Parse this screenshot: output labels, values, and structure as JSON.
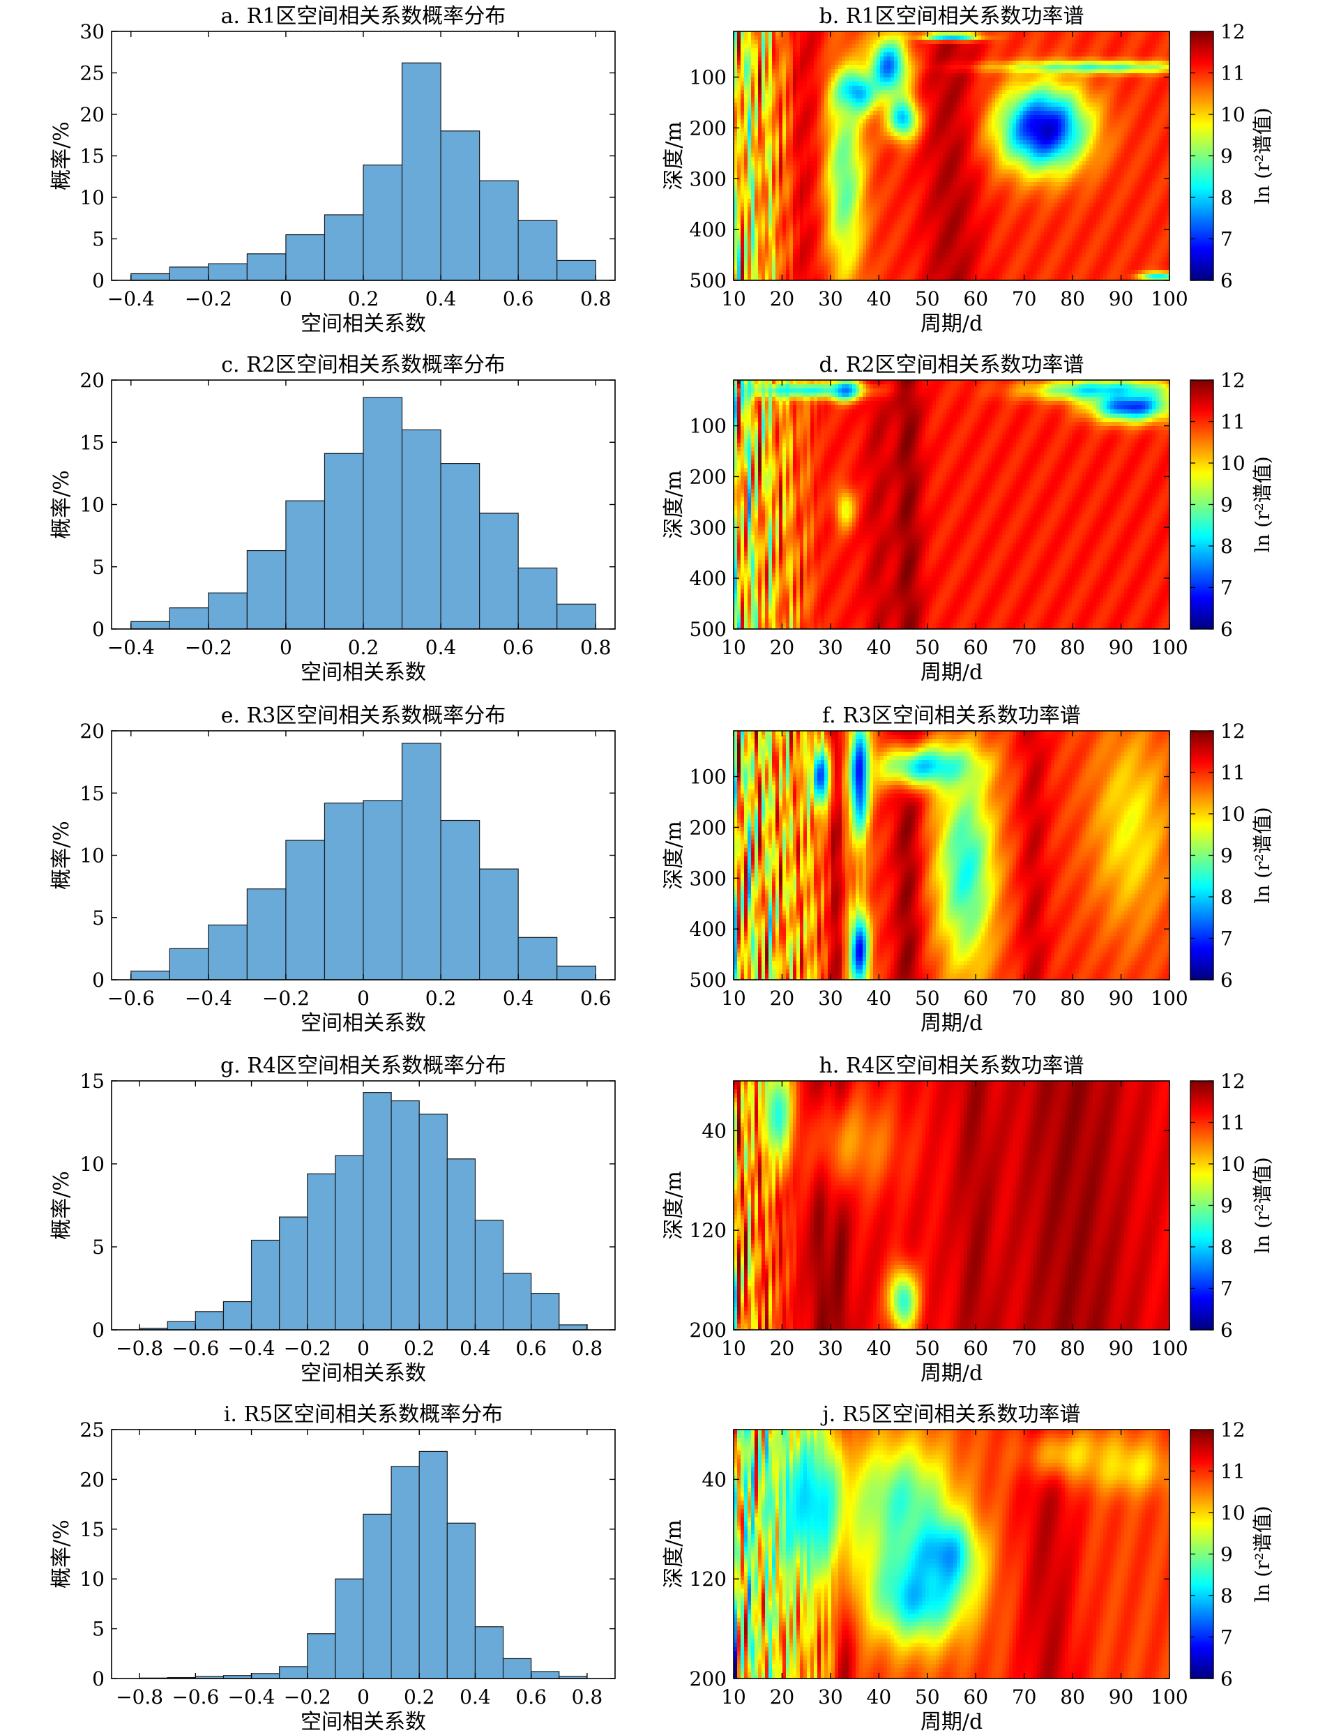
{
  "axis_labels": {
    "hist_x": "空间相关系数",
    "hist_y": "概率/%",
    "spec_x": "周期/d",
    "spec_y": "深度/m",
    "colorbar": "ln (r²谱值)"
  },
  "colors": {
    "bar_fill": "#6aaad9",
    "bar_stroke": "#1a1a1a",
    "colormap": [
      "#00007f",
      "#0000ff",
      "#007fff",
      "#00ffff",
      "#7fff7f",
      "#ffff00",
      "#ff7f00",
      "#ff0000",
      "#7f0000"
    ]
  },
  "chart_data": [
    {
      "id": "a",
      "type": "bar",
      "title": "a. R1区空间相关系数概率分布",
      "xlabel": "空间相关系数",
      "ylabel": "概率/%",
      "xlim": [
        -0.45,
        0.85
      ],
      "ylim": [
        0,
        30
      ],
      "bin_width": 0.1,
      "xticks": [
        "-0.4",
        "-0.2",
        "0",
        "0.2",
        "0.4",
        "0.6",
        "0.8"
      ],
      "yticks": [
        "0",
        "5",
        "10",
        "15",
        "20",
        "25",
        "30"
      ],
      "bin_start": [
        -0.4,
        -0.3,
        -0.2,
        -0.1,
        0.0,
        0.1,
        0.2,
        0.3,
        0.4,
        0.5,
        0.6,
        0.7
      ],
      "values": [
        0.8,
        1.6,
        2.0,
        3.2,
        5.5,
        7.9,
        13.9,
        26.2,
        18.0,
        12.0,
        7.2,
        2.4
      ]
    },
    {
      "id": "b",
      "type": "heatmap",
      "title": "b. R1区空间相关系数功率谱",
      "xlabel": "周期/d",
      "ylabel": "深度/m",
      "xlim": [
        10,
        100
      ],
      "ylim": [
        500,
        10
      ],
      "clim": [
        6,
        12
      ],
      "xticks": [
        "10",
        "20",
        "30",
        "40",
        "50",
        "60",
        "70",
        "80",
        "90",
        "100"
      ],
      "yticks": [
        "100",
        "200",
        "300",
        "400",
        "500"
      ],
      "colorbar_ticks": [
        "6",
        "7",
        "8",
        "9",
        "10",
        "11",
        "12"
      ],
      "features": {
        "base": 11.0,
        "left_stripes": 0.6,
        "stripe_end": 28,
        "stripe_start_value": 8.2,
        "blobs": [
          [
            74,
            200,
            9,
            80,
            6.4
          ],
          [
            85,
            80,
            20,
            12,
            8.6
          ],
          [
            35,
            130,
            4,
            40,
            7.0
          ],
          [
            42,
            80,
            4,
            60,
            7.4
          ],
          [
            45,
            180,
            3,
            40,
            7.8
          ],
          [
            55,
            20,
            6,
            8,
            7.5
          ],
          [
            98,
            490,
            4,
            10,
            8.0
          ],
          [
            33,
            300,
            4,
            200,
            8.8
          ]
        ],
        "ridges": [
          [
            25,
            4,
            11.5
          ],
          [
            55,
            6,
            11.8
          ]
        ]
      }
    },
    {
      "id": "c",
      "type": "bar",
      "title": "c. R2区空间相关系数概率分布",
      "xlabel": "空间相关系数",
      "ylabel": "概率/%",
      "xlim": [
        -0.45,
        0.85
      ],
      "ylim": [
        0,
        20
      ],
      "bin_width": 0.1,
      "xticks": [
        "-0.4",
        "-0.2",
        "0",
        "0.2",
        "0.4",
        "0.6",
        "0.8"
      ],
      "yticks": [
        "0",
        "5",
        "10",
        "15",
        "20"
      ],
      "bin_start": [
        -0.4,
        -0.3,
        -0.2,
        -0.1,
        0.0,
        0.1,
        0.2,
        0.3,
        0.4,
        0.5,
        0.6,
        0.7
      ],
      "values": [
        0.6,
        1.7,
        2.9,
        6.3,
        10.3,
        14.1,
        18.6,
        16.0,
        13.3,
        9.3,
        4.9,
        2.0
      ]
    },
    {
      "id": "d",
      "type": "heatmap",
      "title": "d. R2区空间相关系数功率谱",
      "xlabel": "周期/d",
      "ylabel": "深度/m",
      "xlim": [
        10,
        100
      ],
      "ylim": [
        500,
        10
      ],
      "clim": [
        6,
        12
      ],
      "xticks": [
        "10",
        "20",
        "30",
        "40",
        "50",
        "60",
        "70",
        "80",
        "90",
        "100"
      ],
      "yticks": [
        "100",
        "200",
        "300",
        "400",
        "500"
      ],
      "colorbar_ticks": [
        "6",
        "7",
        "8",
        "9",
        "10",
        "11",
        "12"
      ],
      "features": {
        "base": 11.1,
        "left_stripes": 0.7,
        "stripe_end": 29,
        "stripe_start_value": 8.0,
        "blobs": [
          [
            92,
            60,
            8,
            30,
            6.8
          ],
          [
            86,
            30,
            14,
            20,
            8.0
          ],
          [
            24,
            30,
            12,
            15,
            8.3
          ],
          [
            33,
            30,
            3,
            20,
            7.5
          ],
          [
            33,
            260,
            2,
            40,
            9.6
          ]
        ],
        "ridges": [
          [
            46,
            3,
            12.0
          ],
          [
            40,
            3,
            11.6
          ]
        ]
      }
    },
    {
      "id": "e",
      "type": "bar",
      "title": "e. R3区空间相关系数概率分布",
      "xlabel": "空间相关系数",
      "ylabel": "概率/%",
      "xlim": [
        -0.65,
        0.65
      ],
      "ylim": [
        0,
        20
      ],
      "bin_width": 0.1,
      "xticks": [
        "-0.6",
        "-0.4",
        "-0.2",
        "0",
        "0.2",
        "0.4",
        "0.6"
      ],
      "yticks": [
        "0",
        "5",
        "10",
        "15",
        "20"
      ],
      "bin_start": [
        -0.6,
        -0.5,
        -0.4,
        -0.3,
        -0.2,
        -0.1,
        0.0,
        0.1,
        0.2,
        0.3,
        0.4,
        0.5
      ],
      "values": [
        0.7,
        2.5,
        4.4,
        7.3,
        11.2,
        14.2,
        14.4,
        19.0,
        12.8,
        8.9,
        3.4,
        1.1
      ]
    },
    {
      "id": "f",
      "type": "heatmap",
      "title": "f. R3区空间相关系数功率谱",
      "xlabel": "周期/d",
      "ylabel": "深度/m",
      "xlim": [
        10,
        100
      ],
      "ylim": [
        500,
        10
      ],
      "clim": [
        6,
        12
      ],
      "xticks": [
        "10",
        "20",
        "30",
        "40",
        "50",
        "60",
        "70",
        "80",
        "90",
        "100"
      ],
      "yticks": [
        "100",
        "200",
        "300",
        "400",
        "500"
      ],
      "colorbar_ticks": [
        "6",
        "7",
        "8",
        "9",
        "10",
        "11",
        "12"
      ],
      "features": {
        "base": 11.0,
        "left_stripes": 0.8,
        "stripe_end": 40,
        "stripe_start_value": 8.4,
        "blobs": [
          [
            58,
            280,
            6,
            200,
            8.4
          ],
          [
            50,
            80,
            10,
            40,
            8.0
          ],
          [
            36,
            100,
            2,
            120,
            6.8
          ],
          [
            36,
            440,
            2,
            80,
            6.8
          ],
          [
            28,
            100,
            2,
            60,
            7.2
          ],
          [
            92,
            200,
            8,
            200,
            9.8
          ]
        ],
        "ridges": [
          [
            46,
            3,
            12.0
          ],
          [
            31,
            2,
            11.8
          ],
          [
            72,
            3,
            11.6
          ]
        ]
      }
    },
    {
      "id": "g",
      "type": "bar",
      "title": "g. R4区空间相关系数概率分布",
      "xlabel": "空间相关系数",
      "ylabel": "概率/%",
      "xlim": [
        -0.9,
        0.9
      ],
      "ylim": [
        0,
        15
      ],
      "bin_width": 0.1,
      "xticks": [
        "-0.8",
        "-0.6",
        "-0.4",
        "-0.2",
        "0",
        "0.2",
        "0.4",
        "0.6",
        "0.8"
      ],
      "yticks": [
        "0",
        "5",
        "10",
        "15"
      ],
      "bin_start": [
        -0.8,
        -0.7,
        -0.6,
        -0.5,
        -0.4,
        -0.3,
        -0.2,
        -0.1,
        0.0,
        0.1,
        0.2,
        0.3,
        0.4,
        0.5,
        0.6,
        0.7
      ],
      "values": [
        0.1,
        0.5,
        1.1,
        1.7,
        5.4,
        6.8,
        9.4,
        10.5,
        14.3,
        13.8,
        13.0,
        10.3,
        6.6,
        3.4,
        2.2,
        0.3
      ]
    },
    {
      "id": "h",
      "type": "heatmap",
      "title": "h. R4区空间相关系数功率谱",
      "xlabel": "周期/d",
      "ylabel": "深度/m",
      "xlim": [
        10,
        100
      ],
      "ylim": [
        200,
        0
      ],
      "clim": [
        6,
        12
      ],
      "xticks": [
        "10",
        "20",
        "30",
        "40",
        "50",
        "60",
        "70",
        "80",
        "90",
        "100"
      ],
      "yticks": [
        "40",
        "120",
        "200"
      ],
      "colorbar_ticks": [
        "6",
        "7",
        "8",
        "9",
        "10",
        "11",
        "12"
      ],
      "features": {
        "base": 11.3,
        "left_stripes": 0.8,
        "stripe_end": 24,
        "stripe_start_value": 9.0,
        "blobs": [
          [
            45,
            175,
            3,
            25,
            8.4
          ],
          [
            35,
            50,
            10,
            40,
            10.4
          ],
          [
            19,
            25,
            3,
            40,
            8.4
          ]
        ],
        "ridges": [
          [
            28,
            2,
            12.0
          ],
          [
            32,
            2,
            12.0
          ],
          [
            80,
            12,
            11.9
          ],
          [
            60,
            4,
            11.8
          ]
        ]
      }
    },
    {
      "id": "i",
      "type": "bar",
      "title": "i. R5区空间相关系数概率分布",
      "xlabel": "空间相关系数",
      "ylabel": "概率/%",
      "xlim": [
        -0.9,
        0.9
      ],
      "ylim": [
        0,
        25
      ],
      "bin_width": 0.1,
      "xticks": [
        "-0.8",
        "-0.6",
        "-0.4",
        "-0.2",
        "0",
        "0.2",
        "0.4",
        "0.6",
        "0.8"
      ],
      "yticks": [
        "0",
        "5",
        "10",
        "15",
        "20",
        "25"
      ],
      "bin_start": [
        -0.8,
        -0.7,
        -0.6,
        -0.5,
        -0.4,
        -0.3,
        -0.2,
        -0.1,
        0.0,
        0.1,
        0.2,
        0.3,
        0.4,
        0.5,
        0.6,
        0.7
      ],
      "values": [
        0.05,
        0.1,
        0.2,
        0.3,
        0.5,
        1.2,
        4.5,
        10.0,
        16.5,
        21.3,
        22.8,
        15.6,
        5.2,
        2.0,
        0.7,
        0.2
      ]
    },
    {
      "id": "j",
      "type": "heatmap",
      "title": "j. R5区空间相关系数功率谱",
      "xlabel": "周期/d",
      "ylabel": "深度/m",
      "xlim": [
        10,
        100
      ],
      "ylim": [
        200,
        0
      ],
      "clim": [
        6,
        12
      ],
      "xticks": [
        "10",
        "20",
        "30",
        "40",
        "50",
        "60",
        "70",
        "80",
        "90",
        "100"
      ],
      "yticks": [
        "40",
        "120",
        "200"
      ],
      "colorbar_ticks": [
        "6",
        "7",
        "8",
        "9",
        "10",
        "11",
        "12"
      ],
      "features": {
        "base": 10.9,
        "left_stripes": 0.8,
        "stripe_end": 36,
        "stripe_start_value": 7.6,
        "blobs": [
          [
            52,
            100,
            7,
            30,
            6.6
          ],
          [
            48,
            130,
            10,
            40,
            7.8
          ],
          [
            45,
            60,
            10,
            50,
            8.6
          ],
          [
            26,
            60,
            8,
            60,
            8.0
          ],
          [
            92,
            30,
            8,
            20,
            9.8
          ],
          [
            80,
            20,
            10,
            20,
            10.0
          ]
        ],
        "ridges": [
          [
            33,
            2,
            11.8
          ],
          [
            75,
            6,
            11.7
          ]
        ]
      }
    }
  ]
}
